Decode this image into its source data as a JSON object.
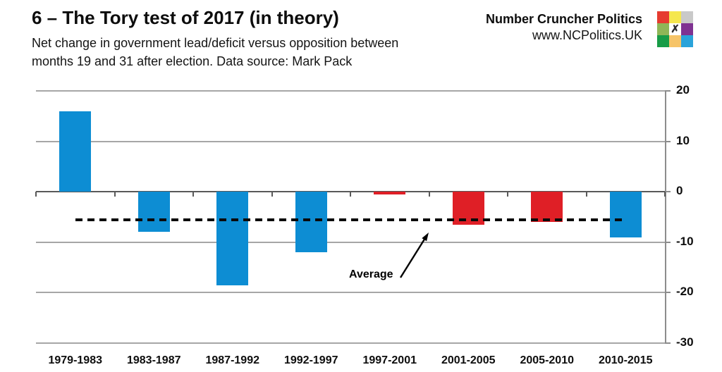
{
  "header": {
    "title": "6 – The Tory test of 2017 (in theory)",
    "subtitle_line1": "Net change in government lead/deficit versus opposition between",
    "subtitle_line2": "months 19 and 31 after election. Data source: Mark Pack"
  },
  "brand": {
    "name": "Number Cruncher Politics",
    "url": "www.NCPolitics.UK",
    "logo_grid_colors": [
      [
        "#e63b30",
        "#f5e74e",
        "#c9c9c9"
      ],
      [
        "#8fb657",
        "#ffffff",
        "#7f3291"
      ],
      [
        "#189c47",
        "#f6c468",
        "#2aa3da"
      ]
    ],
    "logo_x_glyph": "✗"
  },
  "chart_data": {
    "type": "bar",
    "title": "6 – The Tory test of 2017 (in theory)",
    "subtitle": "Net change in government lead/deficit versus opposition between months 19 and 31 after election. Data source: Mark Pack",
    "categories": [
      "1979-1983",
      "1983-1987",
      "1987-1992",
      "1992-1997",
      "1997-2001",
      "2001-2005",
      "2005-2010",
      "2010-2015"
    ],
    "values": [
      16,
      -8,
      -18.5,
      -12,
      -0.5,
      -6.5,
      -6,
      -9
    ],
    "bar_colors": [
      "#0d8dd3",
      "#0d8dd3",
      "#0d8dd3",
      "#0d8dd3",
      "#df1f26",
      "#df1f26",
      "#df1f26",
      "#0d8dd3"
    ],
    "ylim": [
      -30,
      20
    ],
    "yticks": [
      20,
      10,
      0,
      -10,
      -20,
      -30
    ],
    "y_axis_side": "right",
    "grid": "horizontal",
    "legend": "none",
    "average_line": {
      "value": -5.6,
      "label": "Average",
      "style": "dashed"
    }
  },
  "colors": {
    "bar_blue": "#0d8dd3",
    "bar_red": "#df1f26",
    "gridline": "#a6a6a6",
    "zero_line": "#595959",
    "axis": "#8c8c8c",
    "average_line": "#0a0a0a",
    "text": "#0d0d0d"
  }
}
